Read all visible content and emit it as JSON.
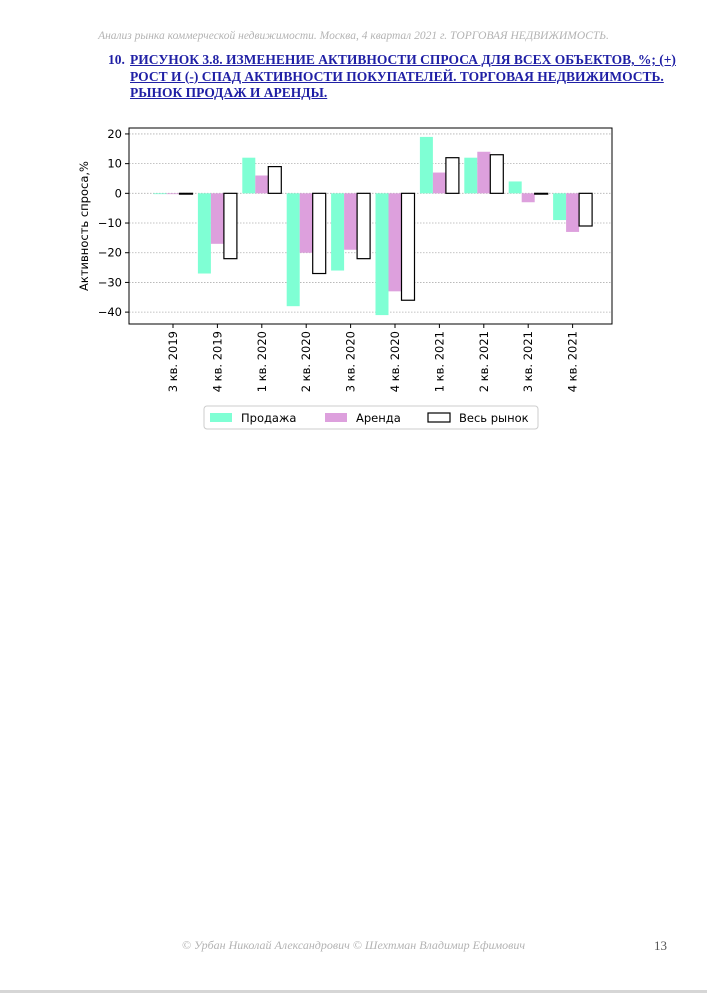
{
  "header": {
    "text": "Анализ рынка коммерческой недвижимости.  Москва,  4 квартал 2021 г.  ТОРГОВАЯ НЕДВИЖИМОСТЬ."
  },
  "figure": {
    "number": "10.",
    "title": "РИСУНОК 3.8. ИЗМЕНЕНИЕ АКТИВНОСТИ СПРОСА ДЛЯ ВСЕХ ОБЪЕКТОВ, %; (+) РОСТ И (-) СПАД АКТИВНОСТИ ПОКУПАТЕЛЕЙ. ТОРГОВАЯ НЕДВИЖИМОСТЬ. РЫНОК ПРОДАЖ И АРЕНДЫ."
  },
  "chart_data": {
    "type": "bar",
    "categories": [
      "3 кв. 2019",
      "4 кв. 2019",
      "1 кв. 2020",
      "2 кв. 2020",
      "3 кв. 2020",
      "4 кв. 2020",
      "1 кв. 2021",
      "2 кв. 2021",
      "3 кв. 2021",
      "4 кв. 2021"
    ],
    "series": [
      {
        "name": "Продажа",
        "color": "#7fffd4",
        "outlined": false,
        "values": [
          0,
          -27,
          12,
          -38,
          -26,
          -41,
          19,
          12,
          4,
          -9
        ]
      },
      {
        "name": "Аренда",
        "color": "#dda0dd",
        "outlined": false,
        "values": [
          0,
          -17,
          6,
          -20,
          -19,
          -33,
          7,
          14,
          -3,
          -13
        ]
      },
      {
        "name": "Весь рынок",
        "color": "#ffffff",
        "outlined": true,
        "values": [
          0,
          -22,
          9,
          -27,
          -22,
          -36,
          12,
          13,
          0,
          -11
        ]
      }
    ],
    "ylabel": "Активность спроса,%",
    "xlabel": "",
    "ylim": [
      -44,
      22
    ],
    "yticks": [
      20,
      10,
      0,
      -10,
      -20,
      -30,
      -40
    ],
    "ytick_labels": [
      "20",
      "10",
      "0",
      "−10",
      "−20",
      "−30",
      "−40"
    ],
    "grid": true,
    "legend_position": "bottom-center"
  },
  "footer": {
    "text": "© Урбан Николай Александрович   © Шехтман Владимир Ефимович"
  },
  "page": {
    "number": "13"
  }
}
